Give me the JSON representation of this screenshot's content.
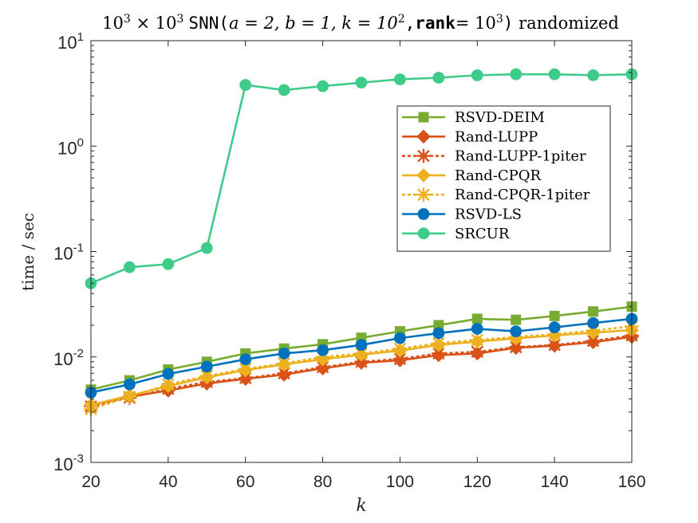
{
  "chart_data": {
    "type": "line",
    "title": {
      "prefix": "10",
      "prefix_exp": "3",
      "times": " × ",
      "mid": "10",
      "mid_exp": "3",
      "snn": "SNN",
      "args_open": "(",
      "a": "a = 2, b = 1, k = 10",
      "k_exp": "2",
      "comma": ",",
      "rank_word": "rank",
      "rank_eq": "= 10",
      "rank_exp": "3",
      "args_close": ")",
      "suffix": " randomized"
    },
    "xlabel": "k",
    "ylabel": "time / sec",
    "x": [
      20,
      30,
      40,
      50,
      60,
      70,
      80,
      90,
      100,
      110,
      120,
      130,
      140,
      150,
      160
    ],
    "xlim": [
      20,
      160
    ],
    "ylim": [
      0.001,
      10
    ],
    "yscale": "log",
    "xticks": [
      "20",
      "40",
      "60",
      "80",
      "100",
      "120",
      "140",
      "160"
    ],
    "yticks": [
      {
        "base": "10",
        "exp": "-3",
        "value": 0.001
      },
      {
        "base": "10",
        "exp": "-2",
        "value": 0.01
      },
      {
        "base": "10",
        "exp": "-1",
        "value": 0.1
      },
      {
        "base": "10",
        "exp": "0",
        "value": 1
      },
      {
        "base": "10",
        "exp": "1",
        "value": 10
      }
    ],
    "grid": false,
    "legend_position": "upper-right",
    "series": [
      {
        "name": "RSVD-DEIM",
        "color": "#77AC30",
        "marker": "square",
        "dash": false,
        "values": [
          0.0049,
          0.006,
          0.0076,
          0.009,
          0.0108,
          0.012,
          0.0132,
          0.0152,
          0.0175,
          0.02,
          0.023,
          0.0225,
          0.0245,
          0.027,
          0.03
        ]
      },
      {
        "name": "Rand-LUPP",
        "color": "#D95319",
        "marker": "diamond",
        "dash": false,
        "values": [
          0.0035,
          0.0042,
          0.0048,
          0.0056,
          0.0062,
          0.0068,
          0.0078,
          0.0088,
          0.0093,
          0.0104,
          0.0108,
          0.0122,
          0.0128,
          0.0138,
          0.0155
        ]
      },
      {
        "name": "Rand-LUPP-1piter",
        "color": "#D95319",
        "marker": "asterisk",
        "dash": true,
        "values": [
          0.0034,
          0.0041,
          0.005,
          0.0058,
          0.0063,
          0.007,
          0.008,
          0.009,
          0.0096,
          0.0108,
          0.0112,
          0.0124,
          0.013,
          0.0142,
          0.016
        ]
      },
      {
        "name": "Rand-CPQR",
        "color": "#EDB120",
        "marker": "diamond",
        "dash": false,
        "values": [
          0.0035,
          0.0043,
          0.0053,
          0.0064,
          0.0075,
          0.0085,
          0.0095,
          0.0105,
          0.0115,
          0.013,
          0.014,
          0.015,
          0.016,
          0.017,
          0.018
        ]
      },
      {
        "name": "Rand-CPQR-1piter",
        "color": "#EDB120",
        "marker": "asterisk",
        "dash": true,
        "values": [
          0.0032,
          0.0042,
          0.0055,
          0.0066,
          0.0077,
          0.0087,
          0.01,
          0.0108,
          0.012,
          0.0135,
          0.0145,
          0.0155,
          0.0165,
          0.0178,
          0.0195
        ]
      },
      {
        "name": "RSVD-LS",
        "color": "#0072BD",
        "marker": "circle",
        "dash": false,
        "values": [
          0.0046,
          0.0055,
          0.0069,
          0.0081,
          0.0095,
          0.0108,
          0.0116,
          0.013,
          0.0151,
          0.0168,
          0.0185,
          0.0175,
          0.0191,
          0.021,
          0.023
        ]
      },
      {
        "name": "SRCUR",
        "color": "#3FCC8A",
        "marker": "circle",
        "dash": false,
        "values": [
          0.05,
          0.071,
          0.076,
          0.108,
          3.8,
          3.4,
          3.7,
          4.0,
          4.3,
          4.45,
          4.7,
          4.8,
          4.8,
          4.7,
          4.8
        ]
      }
    ]
  }
}
